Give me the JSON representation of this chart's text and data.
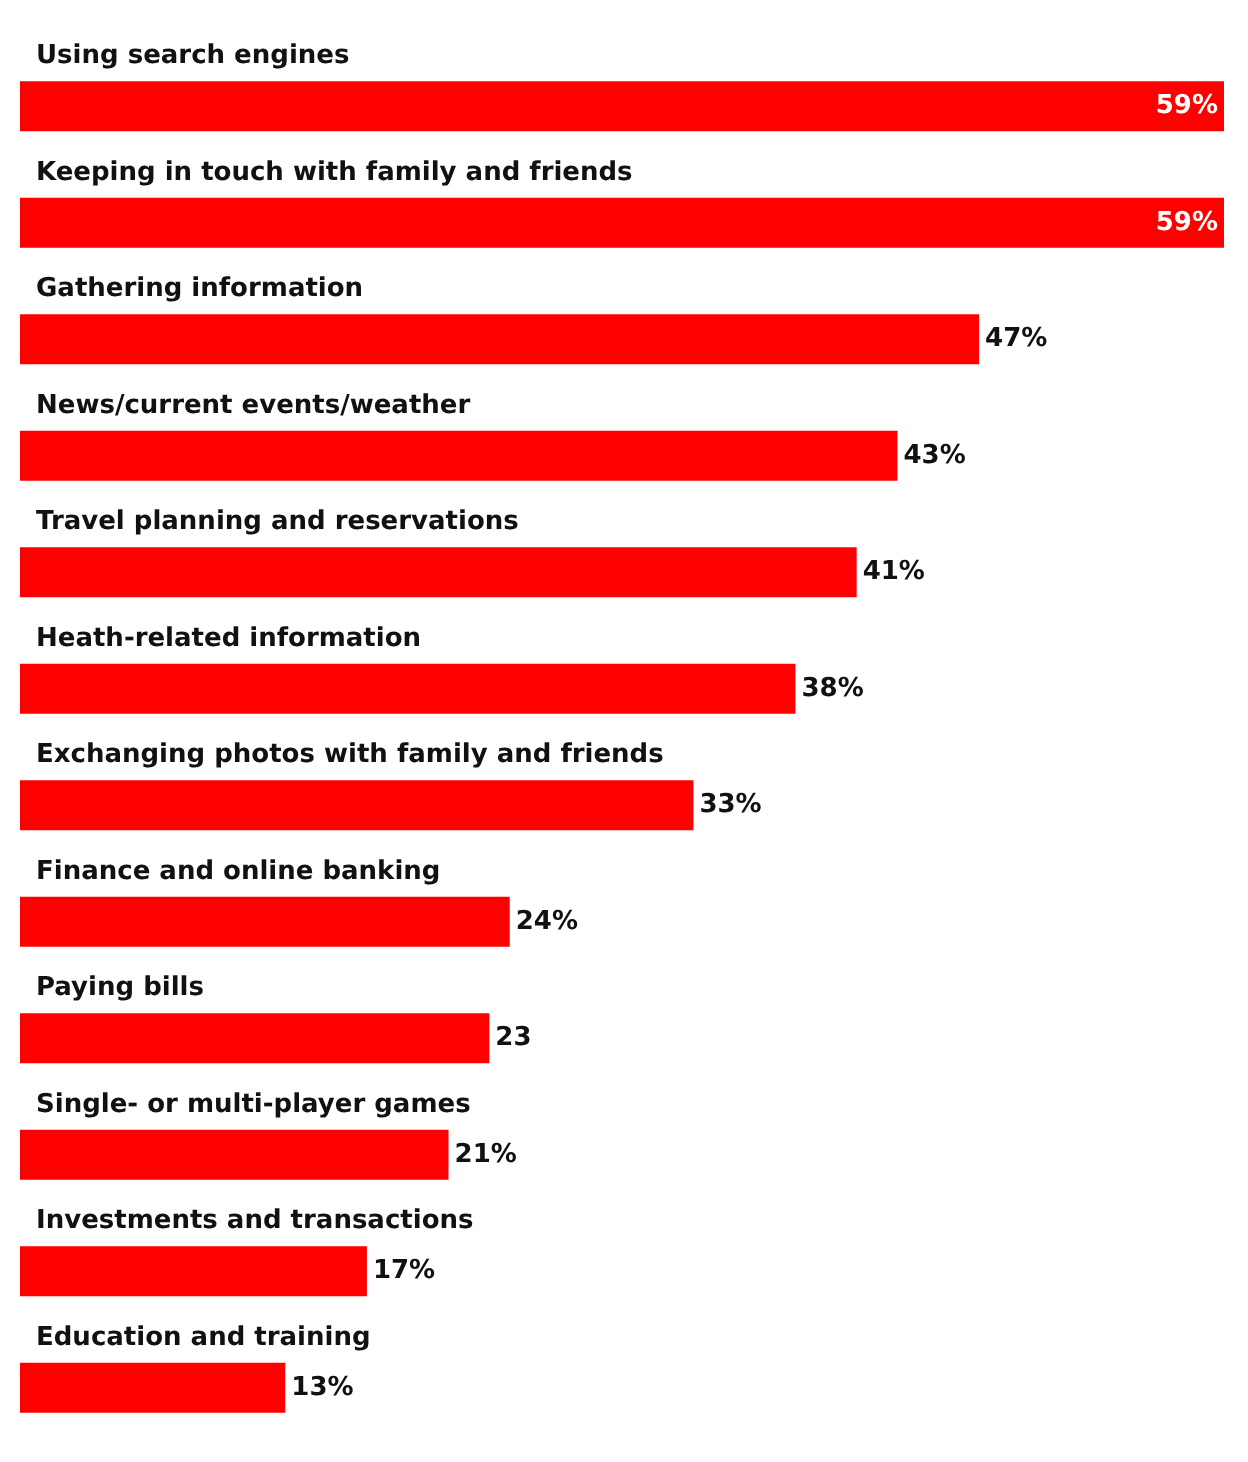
{
  "chart_data": {
    "type": "bar",
    "orientation": "horizontal",
    "categories": [
      "Using search engines",
      "Keeping in touch with family and friends",
      "Gathering information",
      "News/current events/weather",
      "Travel planning and reservations",
      "Heath-related information",
      "Exchanging photos with family and friends",
      "Finance and online banking",
      "Paying bills",
      "Single- or multi-player games",
      "Investments and transactions",
      "Education and training"
    ],
    "values": [
      59,
      59,
      47,
      43,
      41,
      38,
      33,
      24,
      23,
      21,
      17,
      13
    ],
    "value_labels": [
      "59%",
      "59%",
      "47%",
      "43%",
      "41%",
      "38%",
      "33%",
      "24%",
      "23",
      "21%",
      "17%",
      "13%"
    ],
    "color": "#ff0000"
  }
}
